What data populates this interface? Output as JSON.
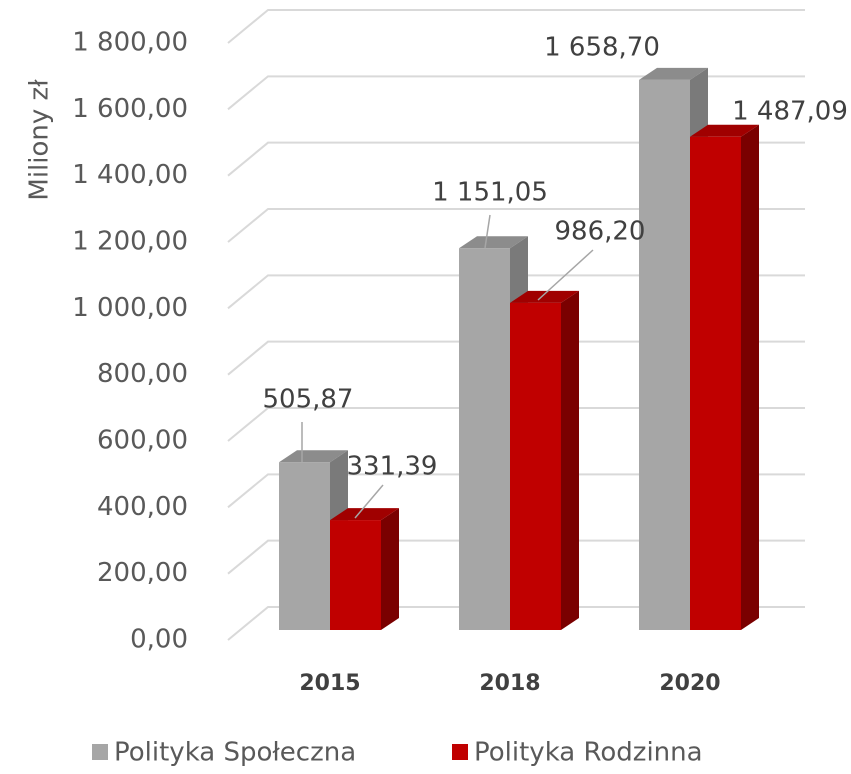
{
  "chart_data": {
    "type": "bar3d",
    "y_label": "Miliony zł",
    "categories": [
      "2015",
      "2018",
      "2020"
    ],
    "series": [
      {
        "name": "Polityka Społeczna",
        "color": "#a6a6a6",
        "values": [
          505.87,
          1151.05,
          1658.7
        ],
        "value_labels": [
          "505,87",
          "1 151,05",
          "1 658,70"
        ]
      },
      {
        "name": "Polityka Rodzinna",
        "color": "#c00000",
        "values": [
          331.39,
          986.2,
          1487.09
        ],
        "value_labels": [
          "331,39",
          "986,20",
          "1 487,09"
        ]
      }
    ],
    "ylim": [
      0,
      1800
    ],
    "yticks": [
      {
        "value": 0,
        "label": "0,00"
      },
      {
        "value": 200,
        "label": "200,00"
      },
      {
        "value": 400,
        "label": "400,00"
      },
      {
        "value": 600,
        "label": "600,00"
      },
      {
        "value": 800,
        "label": "800,00"
      },
      {
        "value": 1000,
        "label": "1 000,00"
      },
      {
        "value": 1200,
        "label": "1 200,00"
      },
      {
        "value": 1400,
        "label": "1 400,00"
      },
      {
        "value": 1600,
        "label": "1 600,00"
      },
      {
        "value": 1800,
        "label": "1 800,00"
      }
    ],
    "grid": true,
    "legend": "bottom"
  }
}
